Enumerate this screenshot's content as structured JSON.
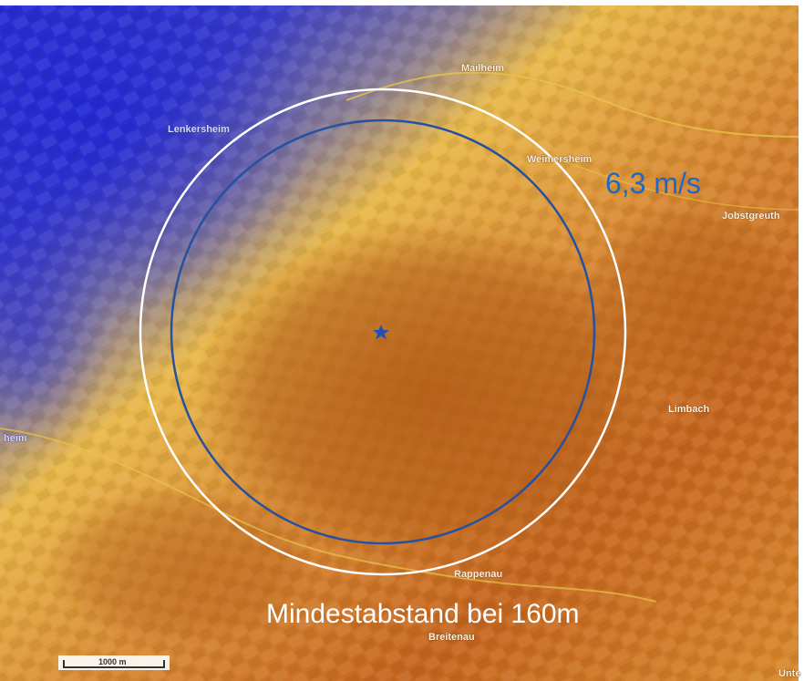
{
  "map": {
    "places": [
      {
        "id": "mailheim",
        "name": "Mailheim"
      },
      {
        "id": "lenkersheim",
        "name": "Lenkersheim"
      },
      {
        "id": "weimersheim",
        "name": "Weimersheim"
      },
      {
        "id": "jobstgreuth",
        "name": "Jobstgreuth"
      },
      {
        "id": "limbach",
        "name": "Limbach"
      },
      {
        "id": "rappenau",
        "name": "Rappenau"
      },
      {
        "id": "breitenau",
        "name": "Breitenau"
      },
      {
        "id": "heim",
        "name": "heim"
      },
      {
        "id": "unte",
        "name": "Unte"
      }
    ],
    "wind_speed_label": "6,3 m/s",
    "caption": "Mindestabstand bei 160m",
    "scale_label": "1000 m",
    "site_marker": "star",
    "colors": {
      "low_wind": "#2b2fd0",
      "mid_wind": "#e8b84a",
      "high_wind": "#c4651f",
      "outer_circle": "#ffffff",
      "inner_circle": "#2650a0",
      "speed_text": "#1f69c2"
    }
  }
}
